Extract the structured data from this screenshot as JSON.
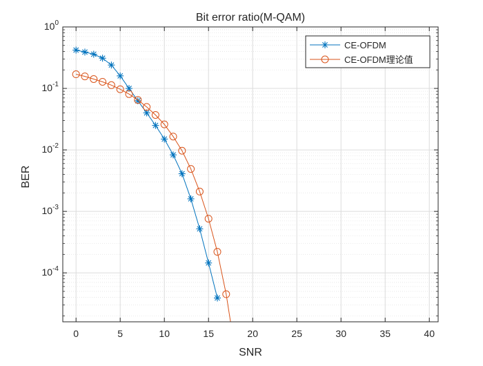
{
  "chart_data": {
    "type": "line",
    "title": "Bit error ratio(M-QAM)",
    "xlabel": "SNR",
    "ylabel": "BER",
    "xlim": [
      -1.5,
      41
    ],
    "ylim": [
      1.6e-05,
      1.0
    ],
    "yscale": "log",
    "grid": true,
    "minor_grid": true,
    "legend_position": "top-right",
    "x_ticks": [
      0,
      5,
      10,
      15,
      20,
      25,
      30,
      35,
      40
    ],
    "x_tick_labels": [
      "0",
      "5",
      "10",
      "15",
      "20",
      "25",
      "30",
      "35",
      "40"
    ],
    "y_ticks": [
      0.0001,
      0.001,
      0.01,
      0.1,
      1
    ],
    "y_tick_labels": [
      {
        "base": "10",
        "exp": "-4"
      },
      {
        "base": "10",
        "exp": "-3"
      },
      {
        "base": "10",
        "exp": "-2"
      },
      {
        "base": "10",
        "exp": "-1"
      },
      {
        "base": "10",
        "exp": "0"
      }
    ],
    "series": [
      {
        "name": "CE-OFDM",
        "color": "#0072BD",
        "marker": "asterisk",
        "x": [
          0,
          1,
          2,
          3,
          4,
          5,
          6,
          7,
          8,
          9,
          10,
          11,
          12,
          13,
          14,
          15,
          16
        ],
        "y": [
          0.42,
          0.39,
          0.36,
          0.31,
          0.24,
          0.16,
          0.1,
          0.063,
          0.04,
          0.025,
          0.015,
          0.0083,
          0.0041,
          0.0016,
          0.00052,
          0.000145,
          3.9e-05
        ]
      },
      {
        "name": "CE-OFDM理论值",
        "color": "#D95319",
        "marker": "circle",
        "x": [
          0,
          1,
          2,
          3,
          4,
          5,
          6,
          7,
          8,
          9,
          10,
          11,
          12,
          13,
          14,
          15,
          16,
          17,
          18
        ],
        "y": [
          0.17,
          0.157,
          0.142,
          0.128,
          0.113,
          0.097,
          0.081,
          0.065,
          0.05,
          0.037,
          0.026,
          0.0165,
          0.0097,
          0.0049,
          0.0021,
          0.00076,
          0.00022,
          4.5e-05,
          5.5e-06
        ]
      }
    ]
  }
}
